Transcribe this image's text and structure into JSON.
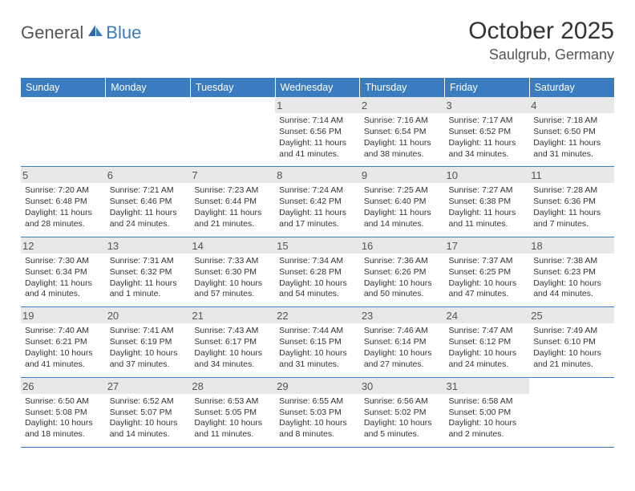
{
  "logo": {
    "general": "General",
    "blue": "Blue"
  },
  "title": "October 2025",
  "location": "Saulgrub, Germany",
  "header_bg": "#3b7bbf",
  "day_headers": [
    "Sunday",
    "Monday",
    "Tuesday",
    "Wednesday",
    "Thursday",
    "Friday",
    "Saturday"
  ],
  "weeks": [
    [
      {
        "blank": true
      },
      {
        "blank": true
      },
      {
        "blank": true
      },
      {
        "n": "1",
        "sr": "7:14 AM",
        "ss": "6:56 PM",
        "dl": "11 hours and 41 minutes."
      },
      {
        "n": "2",
        "sr": "7:16 AM",
        "ss": "6:54 PM",
        "dl": "11 hours and 38 minutes."
      },
      {
        "n": "3",
        "sr": "7:17 AM",
        "ss": "6:52 PM",
        "dl": "11 hours and 34 minutes."
      },
      {
        "n": "4",
        "sr": "7:18 AM",
        "ss": "6:50 PM",
        "dl": "11 hours and 31 minutes."
      }
    ],
    [
      {
        "n": "5",
        "sr": "7:20 AM",
        "ss": "6:48 PM",
        "dl": "11 hours and 28 minutes."
      },
      {
        "n": "6",
        "sr": "7:21 AM",
        "ss": "6:46 PM",
        "dl": "11 hours and 24 minutes."
      },
      {
        "n": "7",
        "sr": "7:23 AM",
        "ss": "6:44 PM",
        "dl": "11 hours and 21 minutes."
      },
      {
        "n": "8",
        "sr": "7:24 AM",
        "ss": "6:42 PM",
        "dl": "11 hours and 17 minutes."
      },
      {
        "n": "9",
        "sr": "7:25 AM",
        "ss": "6:40 PM",
        "dl": "11 hours and 14 minutes."
      },
      {
        "n": "10",
        "sr": "7:27 AM",
        "ss": "6:38 PM",
        "dl": "11 hours and 11 minutes."
      },
      {
        "n": "11",
        "sr": "7:28 AM",
        "ss": "6:36 PM",
        "dl": "11 hours and 7 minutes."
      }
    ],
    [
      {
        "n": "12",
        "sr": "7:30 AM",
        "ss": "6:34 PM",
        "dl": "11 hours and 4 minutes."
      },
      {
        "n": "13",
        "sr": "7:31 AM",
        "ss": "6:32 PM",
        "dl": "11 hours and 1 minute."
      },
      {
        "n": "14",
        "sr": "7:33 AM",
        "ss": "6:30 PM",
        "dl": "10 hours and 57 minutes."
      },
      {
        "n": "15",
        "sr": "7:34 AM",
        "ss": "6:28 PM",
        "dl": "10 hours and 54 minutes."
      },
      {
        "n": "16",
        "sr": "7:36 AM",
        "ss": "6:26 PM",
        "dl": "10 hours and 50 minutes."
      },
      {
        "n": "17",
        "sr": "7:37 AM",
        "ss": "6:25 PM",
        "dl": "10 hours and 47 minutes."
      },
      {
        "n": "18",
        "sr": "7:38 AM",
        "ss": "6:23 PM",
        "dl": "10 hours and 44 minutes."
      }
    ],
    [
      {
        "n": "19",
        "sr": "7:40 AM",
        "ss": "6:21 PM",
        "dl": "10 hours and 41 minutes."
      },
      {
        "n": "20",
        "sr": "7:41 AM",
        "ss": "6:19 PM",
        "dl": "10 hours and 37 minutes."
      },
      {
        "n": "21",
        "sr": "7:43 AM",
        "ss": "6:17 PM",
        "dl": "10 hours and 34 minutes."
      },
      {
        "n": "22",
        "sr": "7:44 AM",
        "ss": "6:15 PM",
        "dl": "10 hours and 31 minutes."
      },
      {
        "n": "23",
        "sr": "7:46 AM",
        "ss": "6:14 PM",
        "dl": "10 hours and 27 minutes."
      },
      {
        "n": "24",
        "sr": "7:47 AM",
        "ss": "6:12 PM",
        "dl": "10 hours and 24 minutes."
      },
      {
        "n": "25",
        "sr": "7:49 AM",
        "ss": "6:10 PM",
        "dl": "10 hours and 21 minutes."
      }
    ],
    [
      {
        "n": "26",
        "sr": "6:50 AM",
        "ss": "5:08 PM",
        "dl": "10 hours and 18 minutes."
      },
      {
        "n": "27",
        "sr": "6:52 AM",
        "ss": "5:07 PM",
        "dl": "10 hours and 14 minutes."
      },
      {
        "n": "28",
        "sr": "6:53 AM",
        "ss": "5:05 PM",
        "dl": "10 hours and 11 minutes."
      },
      {
        "n": "29",
        "sr": "6:55 AM",
        "ss": "5:03 PM",
        "dl": "10 hours and 8 minutes."
      },
      {
        "n": "30",
        "sr": "6:56 AM",
        "ss": "5:02 PM",
        "dl": "10 hours and 5 minutes."
      },
      {
        "n": "31",
        "sr": "6:58 AM",
        "ss": "5:00 PM",
        "dl": "10 hours and 2 minutes."
      },
      {
        "blank": true
      }
    ]
  ],
  "labels": {
    "sunrise": "Sunrise: ",
    "sunset": "Sunset: ",
    "daylight": "Daylight: "
  }
}
